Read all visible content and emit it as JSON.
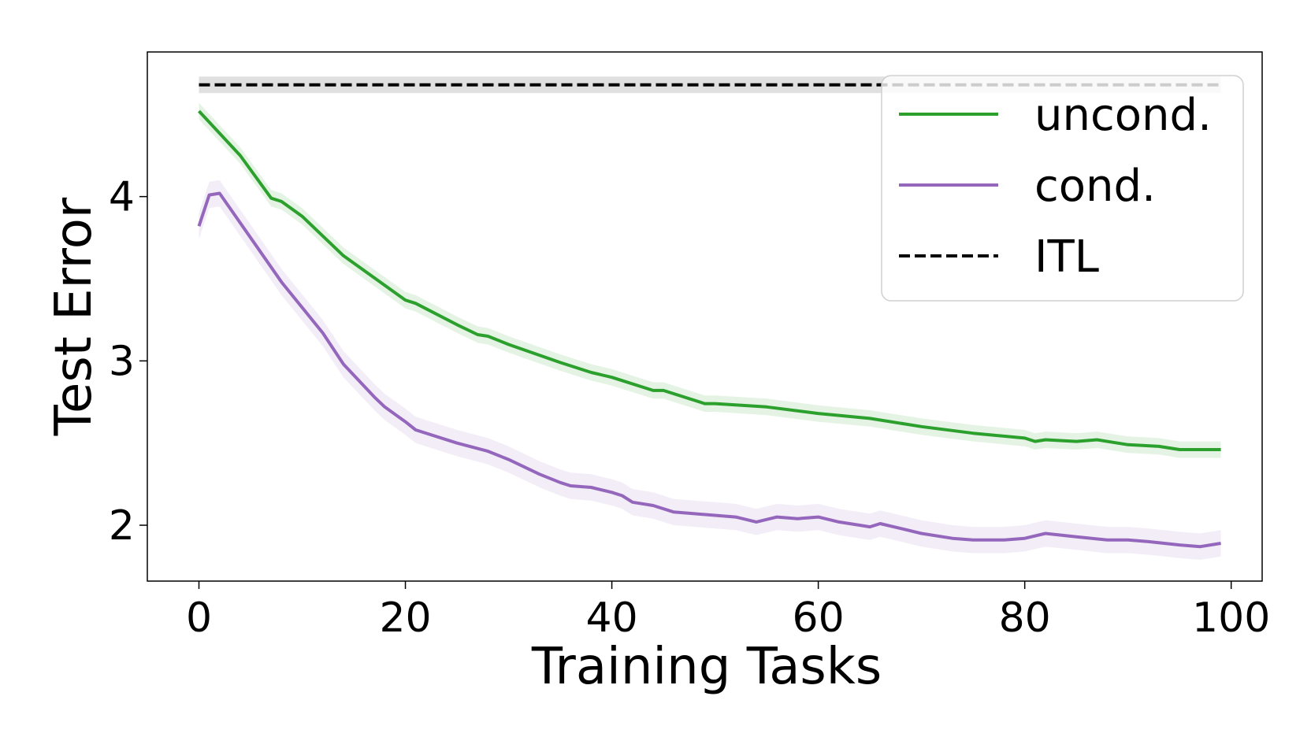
{
  "chart_data": {
    "type": "line",
    "xlabel": "Training Tasks",
    "ylabel": "Test Error",
    "xlim": [
      -5,
      103
    ],
    "ylim": [
      1.66,
      4.88
    ],
    "xticks": [
      0,
      20,
      40,
      60,
      80,
      100
    ],
    "yticks": [
      2,
      3,
      4
    ],
    "xtick_labels": [
      "0",
      "20",
      "40",
      "60",
      "80",
      "100"
    ],
    "ytick_labels": [
      "2",
      "3",
      "4"
    ],
    "grid": false,
    "legend_position": "top-right",
    "series": [
      {
        "name": "uncond.",
        "color": "#2ca02c",
        "style": "solid",
        "band": 0.05,
        "points": [
          [
            0,
            4.52
          ],
          [
            4,
            4.25
          ],
          [
            7,
            3.99
          ],
          [
            8,
            3.97
          ],
          [
            10,
            3.88
          ],
          [
            14,
            3.64
          ],
          [
            20,
            3.37
          ],
          [
            21,
            3.35
          ],
          [
            25,
            3.22
          ],
          [
            27,
            3.16
          ],
          [
            28,
            3.15
          ],
          [
            30,
            3.1
          ],
          [
            35,
            2.99
          ],
          [
            38,
            2.93
          ],
          [
            40,
            2.9
          ],
          [
            44,
            2.82
          ],
          [
            45,
            2.82
          ],
          [
            48,
            2.76
          ],
          [
            49,
            2.74
          ],
          [
            50,
            2.74
          ],
          [
            55,
            2.72
          ],
          [
            60,
            2.68
          ],
          [
            65,
            2.65
          ],
          [
            70,
            2.6
          ],
          [
            75,
            2.56
          ],
          [
            80,
            2.53
          ],
          [
            81,
            2.51
          ],
          [
            82,
            2.52
          ],
          [
            85,
            2.51
          ],
          [
            87,
            2.52
          ],
          [
            90,
            2.49
          ],
          [
            93,
            2.48
          ],
          [
            95,
            2.46
          ],
          [
            98,
            2.46
          ],
          [
            99,
            2.46
          ]
        ]
      },
      {
        "name": "cond.",
        "color": "#9467bd",
        "style": "solid",
        "band": 0.08,
        "points": [
          [
            0,
            3.82
          ],
          [
            1,
            4.01
          ],
          [
            2,
            4.02
          ],
          [
            5,
            3.75
          ],
          [
            8,
            3.48
          ],
          [
            12,
            3.17
          ],
          [
            14,
            2.98
          ],
          [
            17,
            2.78
          ],
          [
            18,
            2.72
          ],
          [
            20,
            2.63
          ],
          [
            21,
            2.58
          ],
          [
            25,
            2.5
          ],
          [
            28,
            2.45
          ],
          [
            30,
            2.4
          ],
          [
            33,
            2.31
          ],
          [
            35,
            2.26
          ],
          [
            36,
            2.24
          ],
          [
            38,
            2.23
          ],
          [
            40,
            2.2
          ],
          [
            41,
            2.18
          ],
          [
            42,
            2.14
          ],
          [
            44,
            2.12
          ],
          [
            46,
            2.08
          ],
          [
            48,
            2.07
          ],
          [
            50,
            2.06
          ],
          [
            52,
            2.05
          ],
          [
            54,
            2.02
          ],
          [
            56,
            2.05
          ],
          [
            58,
            2.04
          ],
          [
            60,
            2.05
          ],
          [
            62,
            2.02
          ],
          [
            64,
            2.0
          ],
          [
            65,
            1.99
          ],
          [
            66,
            2.01
          ],
          [
            68,
            1.98
          ],
          [
            70,
            1.95
          ],
          [
            73,
            1.92
          ],
          [
            75,
            1.91
          ],
          [
            78,
            1.91
          ],
          [
            80,
            1.92
          ],
          [
            82,
            1.95
          ],
          [
            85,
            1.93
          ],
          [
            88,
            1.91
          ],
          [
            90,
            1.91
          ],
          [
            92,
            1.9
          ],
          [
            95,
            1.88
          ],
          [
            97,
            1.87
          ],
          [
            99,
            1.89
          ]
        ]
      },
      {
        "name": "ITL",
        "color": "#000000",
        "style": "dashed",
        "band": 0.05,
        "points": [
          [
            0,
            4.68
          ],
          [
            99,
            4.68
          ]
        ]
      }
    ]
  }
}
